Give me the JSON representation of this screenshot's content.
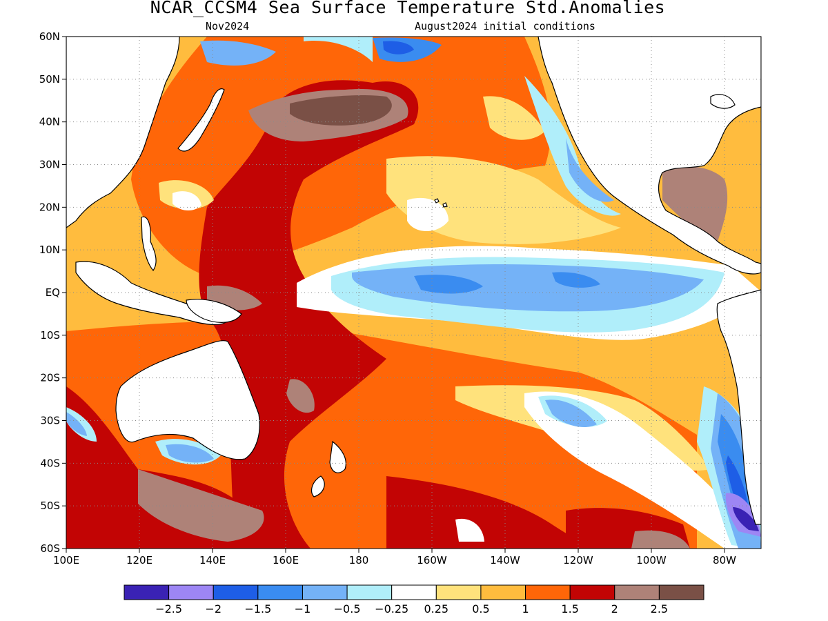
{
  "title": "NCAR_CCSM4 Sea Surface Temperature Std.Anomalies",
  "subtitle_left": "Nov2024",
  "subtitle_right": "August2024 initial conditions",
  "map": {
    "lon_min": 100,
    "lon_max": 290,
    "lat_min": -60,
    "lat_max": 60,
    "lat_ticks": [
      {
        "value": 60,
        "label": "60N"
      },
      {
        "value": 50,
        "label": "50N"
      },
      {
        "value": 40,
        "label": "40N"
      },
      {
        "value": 30,
        "label": "30N"
      },
      {
        "value": 20,
        "label": "20N"
      },
      {
        "value": 10,
        "label": "10N"
      },
      {
        "value": 0,
        "label": "EQ"
      },
      {
        "value": -10,
        "label": "10S"
      },
      {
        "value": -20,
        "label": "20S"
      },
      {
        "value": -30,
        "label": "30S"
      },
      {
        "value": -40,
        "label": "40S"
      },
      {
        "value": -50,
        "label": "50S"
      },
      {
        "value": -60,
        "label": "60S"
      }
    ],
    "lon_ticks": [
      {
        "value": 100,
        "label": "100E"
      },
      {
        "value": 120,
        "label": "120E"
      },
      {
        "value": 140,
        "label": "140E"
      },
      {
        "value": 160,
        "label": "160E"
      },
      {
        "value": 180,
        "label": "180"
      },
      {
        "value": 200,
        "label": "160W"
      },
      {
        "value": 220,
        "label": "140W"
      },
      {
        "value": 240,
        "label": "120W"
      },
      {
        "value": 260,
        "label": "100W"
      },
      {
        "value": 280,
        "label": "80W"
      }
    ]
  },
  "colorbar": {
    "colors": [
      "#3a22b4",
      "#9d86f4",
      "#1e5ee6",
      "#3a8cf0",
      "#74b2f7",
      "#b0eefa",
      "#ffffff",
      "#ffe27c",
      "#ffbc3e",
      "#ff6608",
      "#c20404",
      "#ae8278",
      "#7a5046"
    ],
    "labels": [
      "−2.5",
      "−2",
      "−1.5",
      "−1",
      "−0.5",
      "−0.25",
      "0.25",
      "0.5",
      "1",
      "1.5",
      "2",
      "2.5"
    ]
  }
}
